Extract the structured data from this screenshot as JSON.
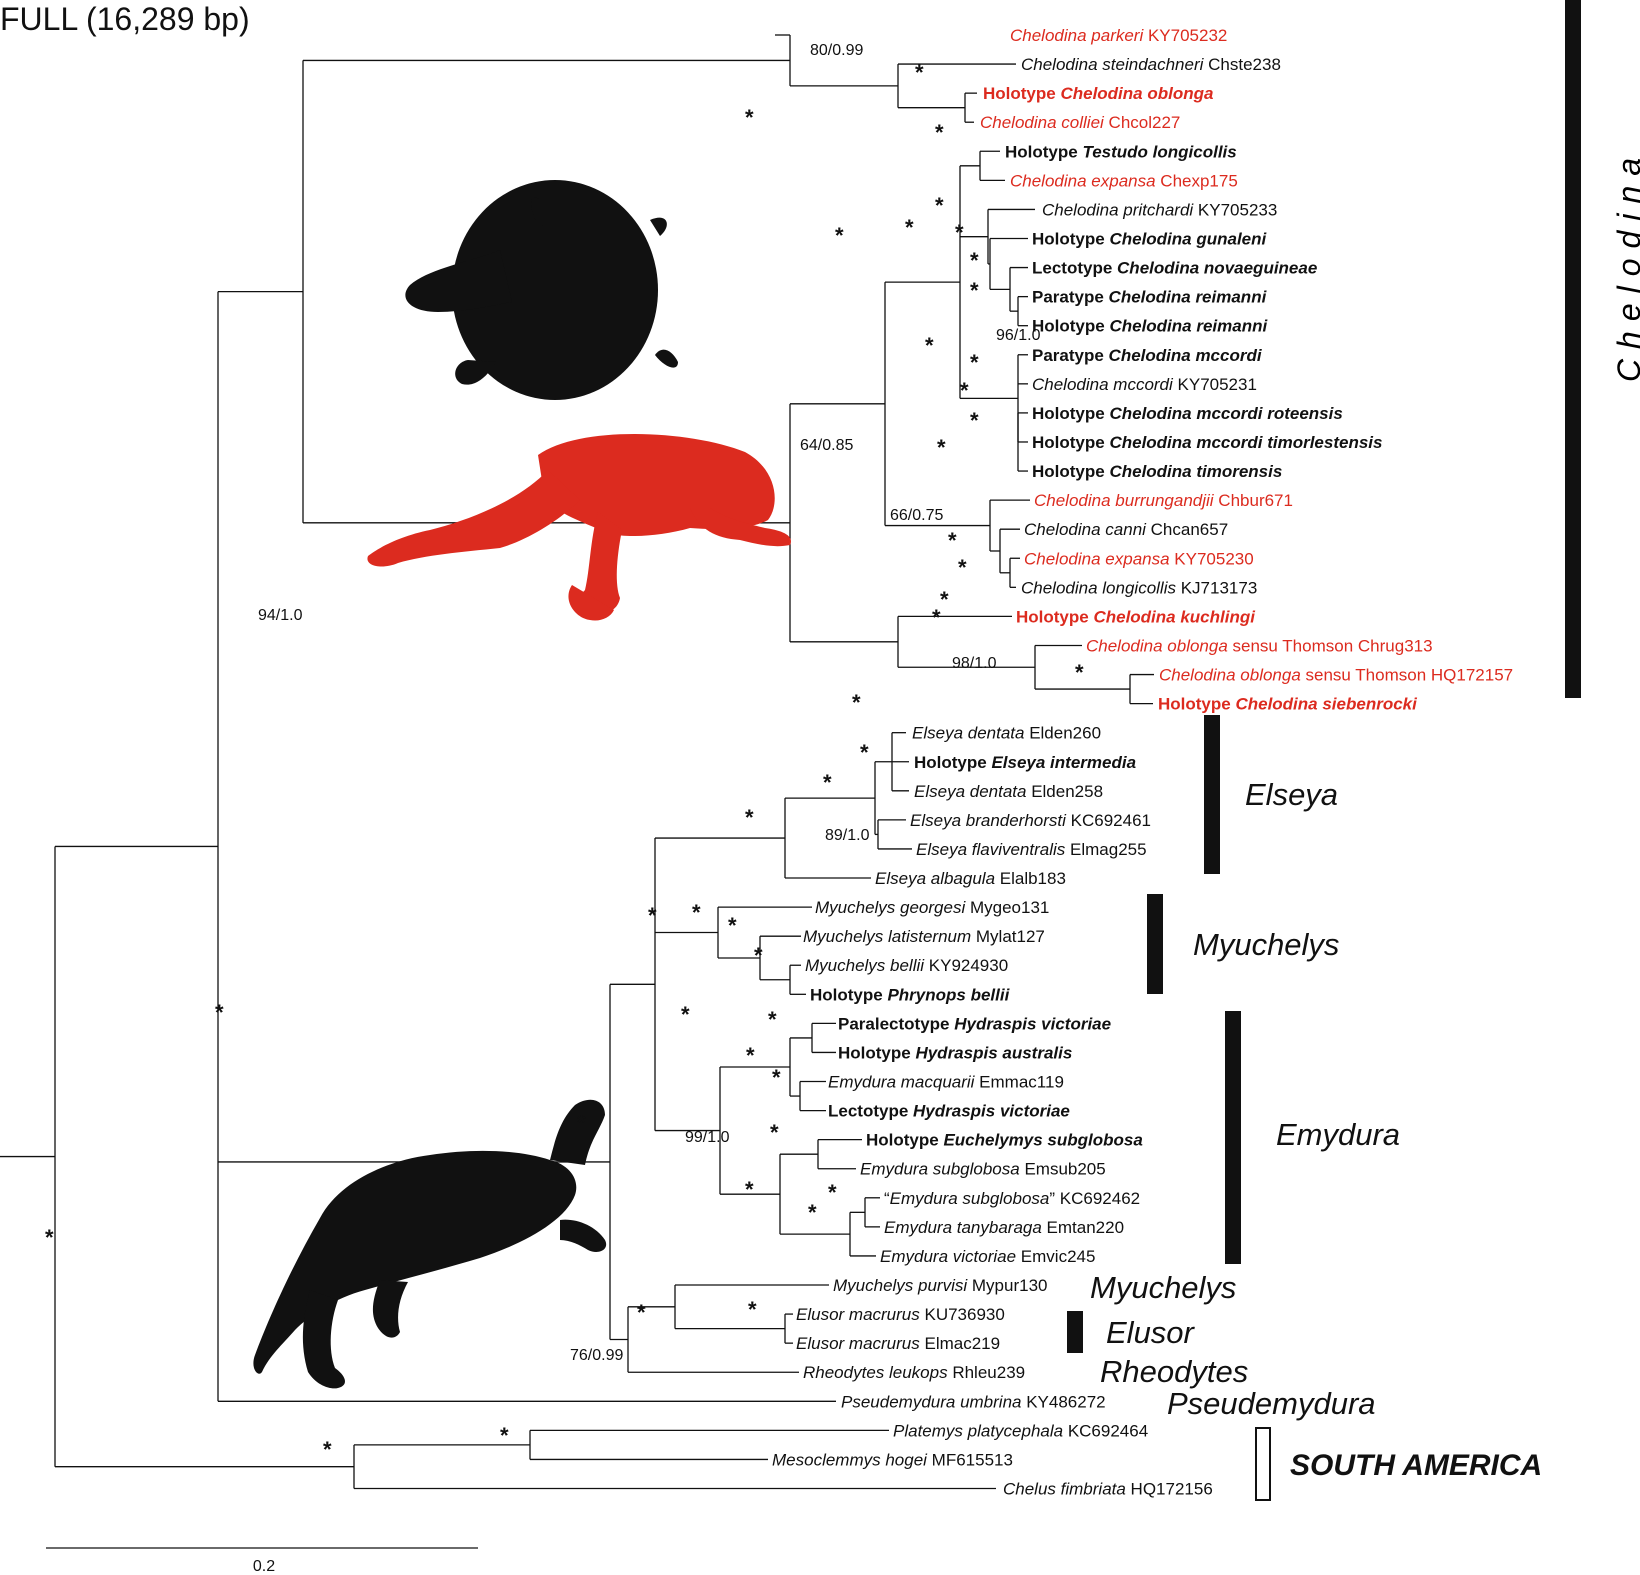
{
  "title": "FULL (16,289 bp)",
  "scale_label": "0.2",
  "colors": {
    "black": "#111111",
    "red": "#dc2b1f"
  },
  "tips": [
    {
      "id": "t1",
      "parts": [
        {
          "t": "Chelodina parkeri",
          "i": true
        },
        {
          "t": " KY705232"
        }
      ],
      "red": true,
      "bold": false
    },
    {
      "id": "t2",
      "parts": [
        {
          "t": "Chelodina steindachneri",
          "i": true
        },
        {
          "t": " Chste238"
        }
      ],
      "red": false,
      "bold": false
    },
    {
      "id": "t3",
      "parts": [
        {
          "t": "Holotype "
        },
        {
          "t": "Chelodina oblonga",
          "i": true
        }
      ],
      "red": true,
      "bold": true
    },
    {
      "id": "t4",
      "parts": [
        {
          "t": "Chelodina colliei",
          "i": true
        },
        {
          "t": " Chcol227"
        }
      ],
      "red": true,
      "bold": false
    },
    {
      "id": "t5",
      "parts": [
        {
          "t": "Holotype "
        },
        {
          "t": "Testudo longicollis",
          "i": true
        }
      ],
      "red": false,
      "bold": true
    },
    {
      "id": "t6",
      "parts": [
        {
          "t": "Chelodina expansa",
          "i": true
        },
        {
          "t": " Chexp175"
        }
      ],
      "red": true,
      "bold": false
    },
    {
      "id": "t7",
      "parts": [
        {
          "t": "Chelodina pritchardi",
          "i": true
        },
        {
          "t": " KY705233"
        }
      ],
      "red": false,
      "bold": false
    },
    {
      "id": "t8",
      "parts": [
        {
          "t": "Holotype "
        },
        {
          "t": "Chelodina gunaleni",
          "i": true
        }
      ],
      "red": false,
      "bold": true
    },
    {
      "id": "t9",
      "parts": [
        {
          "t": "Lectotype "
        },
        {
          "t": "Chelodina novaeguineae",
          "i": true
        }
      ],
      "red": false,
      "bold": true
    },
    {
      "id": "t10",
      "parts": [
        {
          "t": "Paratype "
        },
        {
          "t": "Chelodina reimanni",
          "i": true
        }
      ],
      "red": false,
      "bold": true
    },
    {
      "id": "t11",
      "parts": [
        {
          "t": "Holotype "
        },
        {
          "t": "Chelodina reimanni",
          "i": true
        }
      ],
      "red": false,
      "bold": true
    },
    {
      "id": "t12",
      "parts": [
        {
          "t": "Paratype "
        },
        {
          "t": "Chelodina mccordi",
          "i": true
        }
      ],
      "red": false,
      "bold": true
    },
    {
      "id": "t13",
      "parts": [
        {
          "t": "Chelodina mccordi",
          "i": true
        },
        {
          "t": " KY705231"
        }
      ],
      "red": false,
      "bold": false
    },
    {
      "id": "t14",
      "parts": [
        {
          "t": "Holotype "
        },
        {
          "t": "Chelodina mccordi roteensis",
          "i": true
        }
      ],
      "red": false,
      "bold": true
    },
    {
      "id": "t15",
      "parts": [
        {
          "t": "Holotype "
        },
        {
          "t": "Chelodina mccordi timorlestensis",
          "i": true
        }
      ],
      "red": false,
      "bold": true
    },
    {
      "id": "t16",
      "parts": [
        {
          "t": "Holotype "
        },
        {
          "t": "Chelodina timorensis",
          "i": true
        }
      ],
      "red": false,
      "bold": true
    },
    {
      "id": "t17",
      "parts": [
        {
          "t": "Chelodina burrungandjii",
          "i": true
        },
        {
          "t": " Chbur671"
        }
      ],
      "red": true,
      "bold": false
    },
    {
      "id": "t18",
      "parts": [
        {
          "t": "Chelodina canni",
          "i": true
        },
        {
          "t": " Chcan657"
        }
      ],
      "red": false,
      "bold": false
    },
    {
      "id": "t19",
      "parts": [
        {
          "t": "Chelodina expansa",
          "i": true
        },
        {
          "t": " KY705230"
        }
      ],
      "red": true,
      "bold": false
    },
    {
      "id": "t20",
      "parts": [
        {
          "t": "Chelodina longicollis",
          "i": true
        },
        {
          "t": " KJ713173"
        }
      ],
      "red": false,
      "bold": false
    },
    {
      "id": "t21",
      "parts": [
        {
          "t": "Holotype "
        },
        {
          "t": "Chelodina kuchlingi",
          "i": true
        }
      ],
      "red": true,
      "bold": true
    },
    {
      "id": "t22",
      "parts": [
        {
          "t": "Chelodina oblonga",
          "i": true
        },
        {
          "t": " sensu Thomson Chrug313"
        }
      ],
      "red": true,
      "bold": false
    },
    {
      "id": "t23",
      "parts": [
        {
          "t": "Chelodina oblonga",
          "i": true
        },
        {
          "t": " sensu Thomson HQ172157"
        }
      ],
      "red": true,
      "bold": false
    },
    {
      "id": "t24",
      "parts": [
        {
          "t": "Holotype "
        },
        {
          "t": "Chelodina siebenrocki",
          "i": true
        }
      ],
      "red": true,
      "bold": true
    },
    {
      "id": "t25",
      "parts": [
        {
          "t": "Elseya dentata",
          "i": true
        },
        {
          "t": " Elden260"
        }
      ],
      "red": false,
      "bold": false
    },
    {
      "id": "t26",
      "parts": [
        {
          "t": "Holotype "
        },
        {
          "t": "Elseya intermedia",
          "i": true
        }
      ],
      "red": false,
      "bold": true
    },
    {
      "id": "t27",
      "parts": [
        {
          "t": "Elseya dentata",
          "i": true
        },
        {
          "t": " Elden258"
        }
      ],
      "red": false,
      "bold": false
    },
    {
      "id": "t28",
      "parts": [
        {
          "t": "Elseya branderhorsti",
          "i": true
        },
        {
          "t": " KC692461"
        }
      ],
      "red": false,
      "bold": false
    },
    {
      "id": "t29",
      "parts": [
        {
          "t": "Elseya flaviventralis",
          "i": true
        },
        {
          "t": " Elmag255"
        }
      ],
      "red": false,
      "bold": false
    },
    {
      "id": "t30",
      "parts": [
        {
          "t": "Elseya albagula",
          "i": true
        },
        {
          "t": " Elalb183"
        }
      ],
      "red": false,
      "bold": false
    },
    {
      "id": "t31",
      "parts": [
        {
          "t": "Myuchelys georgesi",
          "i": true
        },
        {
          "t": " Mygeo131"
        }
      ],
      "red": false,
      "bold": false
    },
    {
      "id": "t32",
      "parts": [
        {
          "t": "Myuchelys latisternum",
          "i": true
        },
        {
          "t": " Mylat127"
        }
      ],
      "red": false,
      "bold": false
    },
    {
      "id": "t33",
      "parts": [
        {
          "t": "Myuchelys bellii",
          "i": true
        },
        {
          "t": " KY924930"
        }
      ],
      "red": false,
      "bold": false
    },
    {
      "id": "t34",
      "parts": [
        {
          "t": "Holotype "
        },
        {
          "t": "Phrynops bellii",
          "i": true
        }
      ],
      "red": false,
      "bold": true
    },
    {
      "id": "t35",
      "parts": [
        {
          "t": "Paralectotype "
        },
        {
          "t": "Hydraspis victoriae",
          "i": true
        }
      ],
      "red": false,
      "bold": true
    },
    {
      "id": "t36",
      "parts": [
        {
          "t": "Holotype "
        },
        {
          "t": "Hydraspis australis",
          "i": true
        }
      ],
      "red": false,
      "bold": true
    },
    {
      "id": "t37",
      "parts": [
        {
          "t": "Emydura macquarii",
          "i": true
        },
        {
          "t": " Emmac119"
        }
      ],
      "red": false,
      "bold": false
    },
    {
      "id": "t38",
      "parts": [
        {
          "t": "Lectotype "
        },
        {
          "t": "Hydraspis victoriae",
          "i": true
        }
      ],
      "red": false,
      "bold": true
    },
    {
      "id": "t39",
      "parts": [
        {
          "t": "Holotype "
        },
        {
          "t": "Euchelymys subglobosa",
          "i": true
        }
      ],
      "red": false,
      "bold": true
    },
    {
      "id": "t40",
      "parts": [
        {
          "t": "Emydura subglobosa",
          "i": true
        },
        {
          "t": " Emsub205"
        }
      ],
      "red": false,
      "bold": false
    },
    {
      "id": "t41",
      "parts": [
        {
          "t": "“"
        },
        {
          "t": "Emydura subglobosa",
          "i": true
        },
        {
          "t": "” KC692462"
        }
      ],
      "red": false,
      "bold": false
    },
    {
      "id": "t42",
      "parts": [
        {
          "t": "Emydura tanybaraga",
          "i": true
        },
        {
          "t": " Emtan220"
        }
      ],
      "red": false,
      "bold": false
    },
    {
      "id": "t43",
      "parts": [
        {
          "t": "Emydura victoriae",
          "i": true
        },
        {
          "t": " Emvic245"
        }
      ],
      "red": false,
      "bold": false
    },
    {
      "id": "t44",
      "parts": [
        {
          "t": "Myuchelys purvisi",
          "i": true
        },
        {
          "t": " Mypur130"
        }
      ],
      "red": false,
      "bold": false
    },
    {
      "id": "t45",
      "parts": [
        {
          "t": "Elusor macrurus",
          "i": true
        },
        {
          "t": " KU736930"
        }
      ],
      "red": false,
      "bold": false
    },
    {
      "id": "t46",
      "parts": [
        {
          "t": "Elusor macrurus",
          "i": true
        },
        {
          "t": " Elmac219"
        }
      ],
      "red": false,
      "bold": false
    },
    {
      "id": "t47",
      "parts": [
        {
          "t": "Rheodytes leukops",
          "i": true
        },
        {
          "t": " Rhleu239"
        }
      ],
      "red": false,
      "bold": false
    },
    {
      "id": "t48",
      "parts": [
        {
          "t": "Pseudemydura umbrina",
          "i": true
        },
        {
          "t": " KY486272"
        }
      ],
      "red": false,
      "bold": false
    },
    {
      "id": "t49",
      "parts": [
        {
          "t": "Platemys platycephala",
          "i": true
        },
        {
          "t": " KC692464"
        }
      ],
      "red": false,
      "bold": false
    },
    {
      "id": "t50",
      "parts": [
        {
          "t": "Mesoclemmys hogei",
          "i": true
        },
        {
          "t": " MF615513"
        }
      ],
      "red": false,
      "bold": false
    },
    {
      "id": "t51",
      "parts": [
        {
          "t": "Chelus fimbriata",
          "i": true
        },
        {
          "t": " HQ172156"
        }
      ],
      "red": false,
      "bold": false
    }
  ],
  "support_values": [
    "*",
    "80/0.99",
    "94/1.0",
    "64/0.85",
    "96/1.0",
    "66/0.75",
    "98/1.0",
    "89/1.0",
    "99/1.0",
    "76/0.99"
  ],
  "clades": [
    {
      "label": "Chelodina",
      "bar": "filled"
    },
    {
      "label": "Elseya",
      "bar": "filled"
    },
    {
      "label": "Myuchelys",
      "bar": "filled"
    },
    {
      "label": "Emydura",
      "bar": "filled"
    },
    {
      "label": "Myuchelys",
      "bar": "none"
    },
    {
      "label": "Elusor",
      "bar": "filled"
    },
    {
      "label": "Rheodytes",
      "bar": "none"
    },
    {
      "label": "Pseudemydura",
      "bar": "none"
    },
    {
      "label": "SOUTH AMERICA",
      "bar": "outline"
    }
  ]
}
